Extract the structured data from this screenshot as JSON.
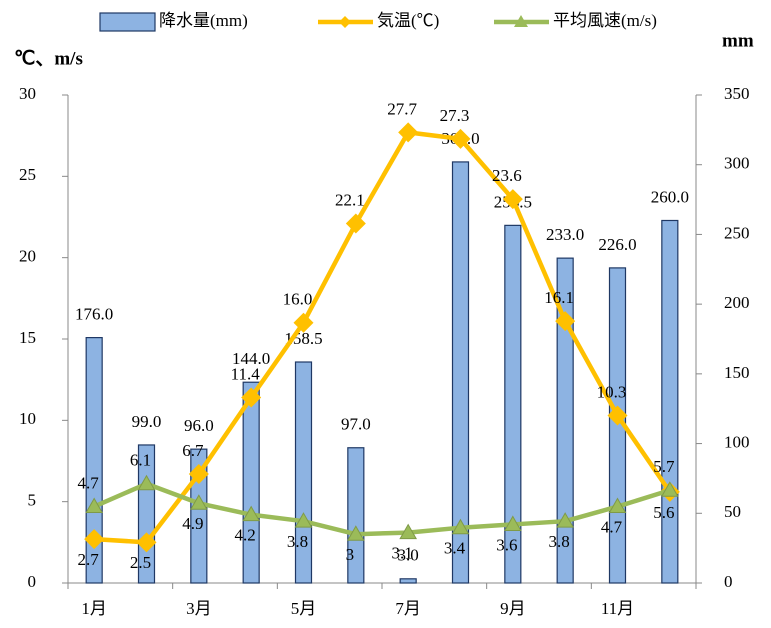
{
  "chart_data": {
    "type": "bar",
    "categories": [
      "1月",
      null,
      "3月",
      null,
      "5月",
      null,
      "7月",
      null,
      "9月",
      null,
      "11月",
      null
    ],
    "ylabel": "℃、m/s",
    "y2label": "mm",
    "ylim": [
      0,
      30
    ],
    "yticks": [
      0,
      5,
      10,
      15,
      20,
      25,
      30
    ],
    "y2lim": [
      0,
      350
    ],
    "y2ticks": [
      0,
      50,
      100,
      150,
      200,
      250,
      300,
      350
    ],
    "series": [
      {
        "name": "降水量(mm)",
        "type": "bar",
        "axis": "y2",
        "color": "#8db3e2",
        "values": [
          176.0,
          99.0,
          96.0,
          144.0,
          158.5,
          97.0,
          3.0,
          302.0,
          256.5,
          233.0,
          226.0,
          260.0
        ],
        "value_labels": [
          "176.0",
          "99.0",
          "96.0",
          "144.0",
          "158.5",
          "97.0",
          "3.0",
          "302.0",
          "256.5",
          "233.0",
          "226.0",
          "260.0"
        ]
      },
      {
        "name": "気温(℃)",
        "type": "line",
        "color": "#ffc000",
        "values": [
          2.7,
          2.5,
          6.7,
          11.4,
          16.0,
          22.1,
          27.7,
          27.3,
          23.6,
          16.1,
          10.3,
          5.6
        ],
        "value_labels": [
          "2.7",
          "2.5",
          "6.7",
          "11.4",
          "16.0",
          "22.1",
          "27.7",
          "27.3",
          "23.6",
          "16.1",
          "10.3",
          "5.6"
        ]
      },
      {
        "name": "平均風速(m/s)",
        "type": "line",
        "color": "#9bbb59",
        "values": [
          4.7,
          6.1,
          4.9,
          4.2,
          3.8,
          3.0,
          3.1,
          3.4,
          3.6,
          3.8,
          4.7,
          5.7
        ]
      }
    ]
  }
}
